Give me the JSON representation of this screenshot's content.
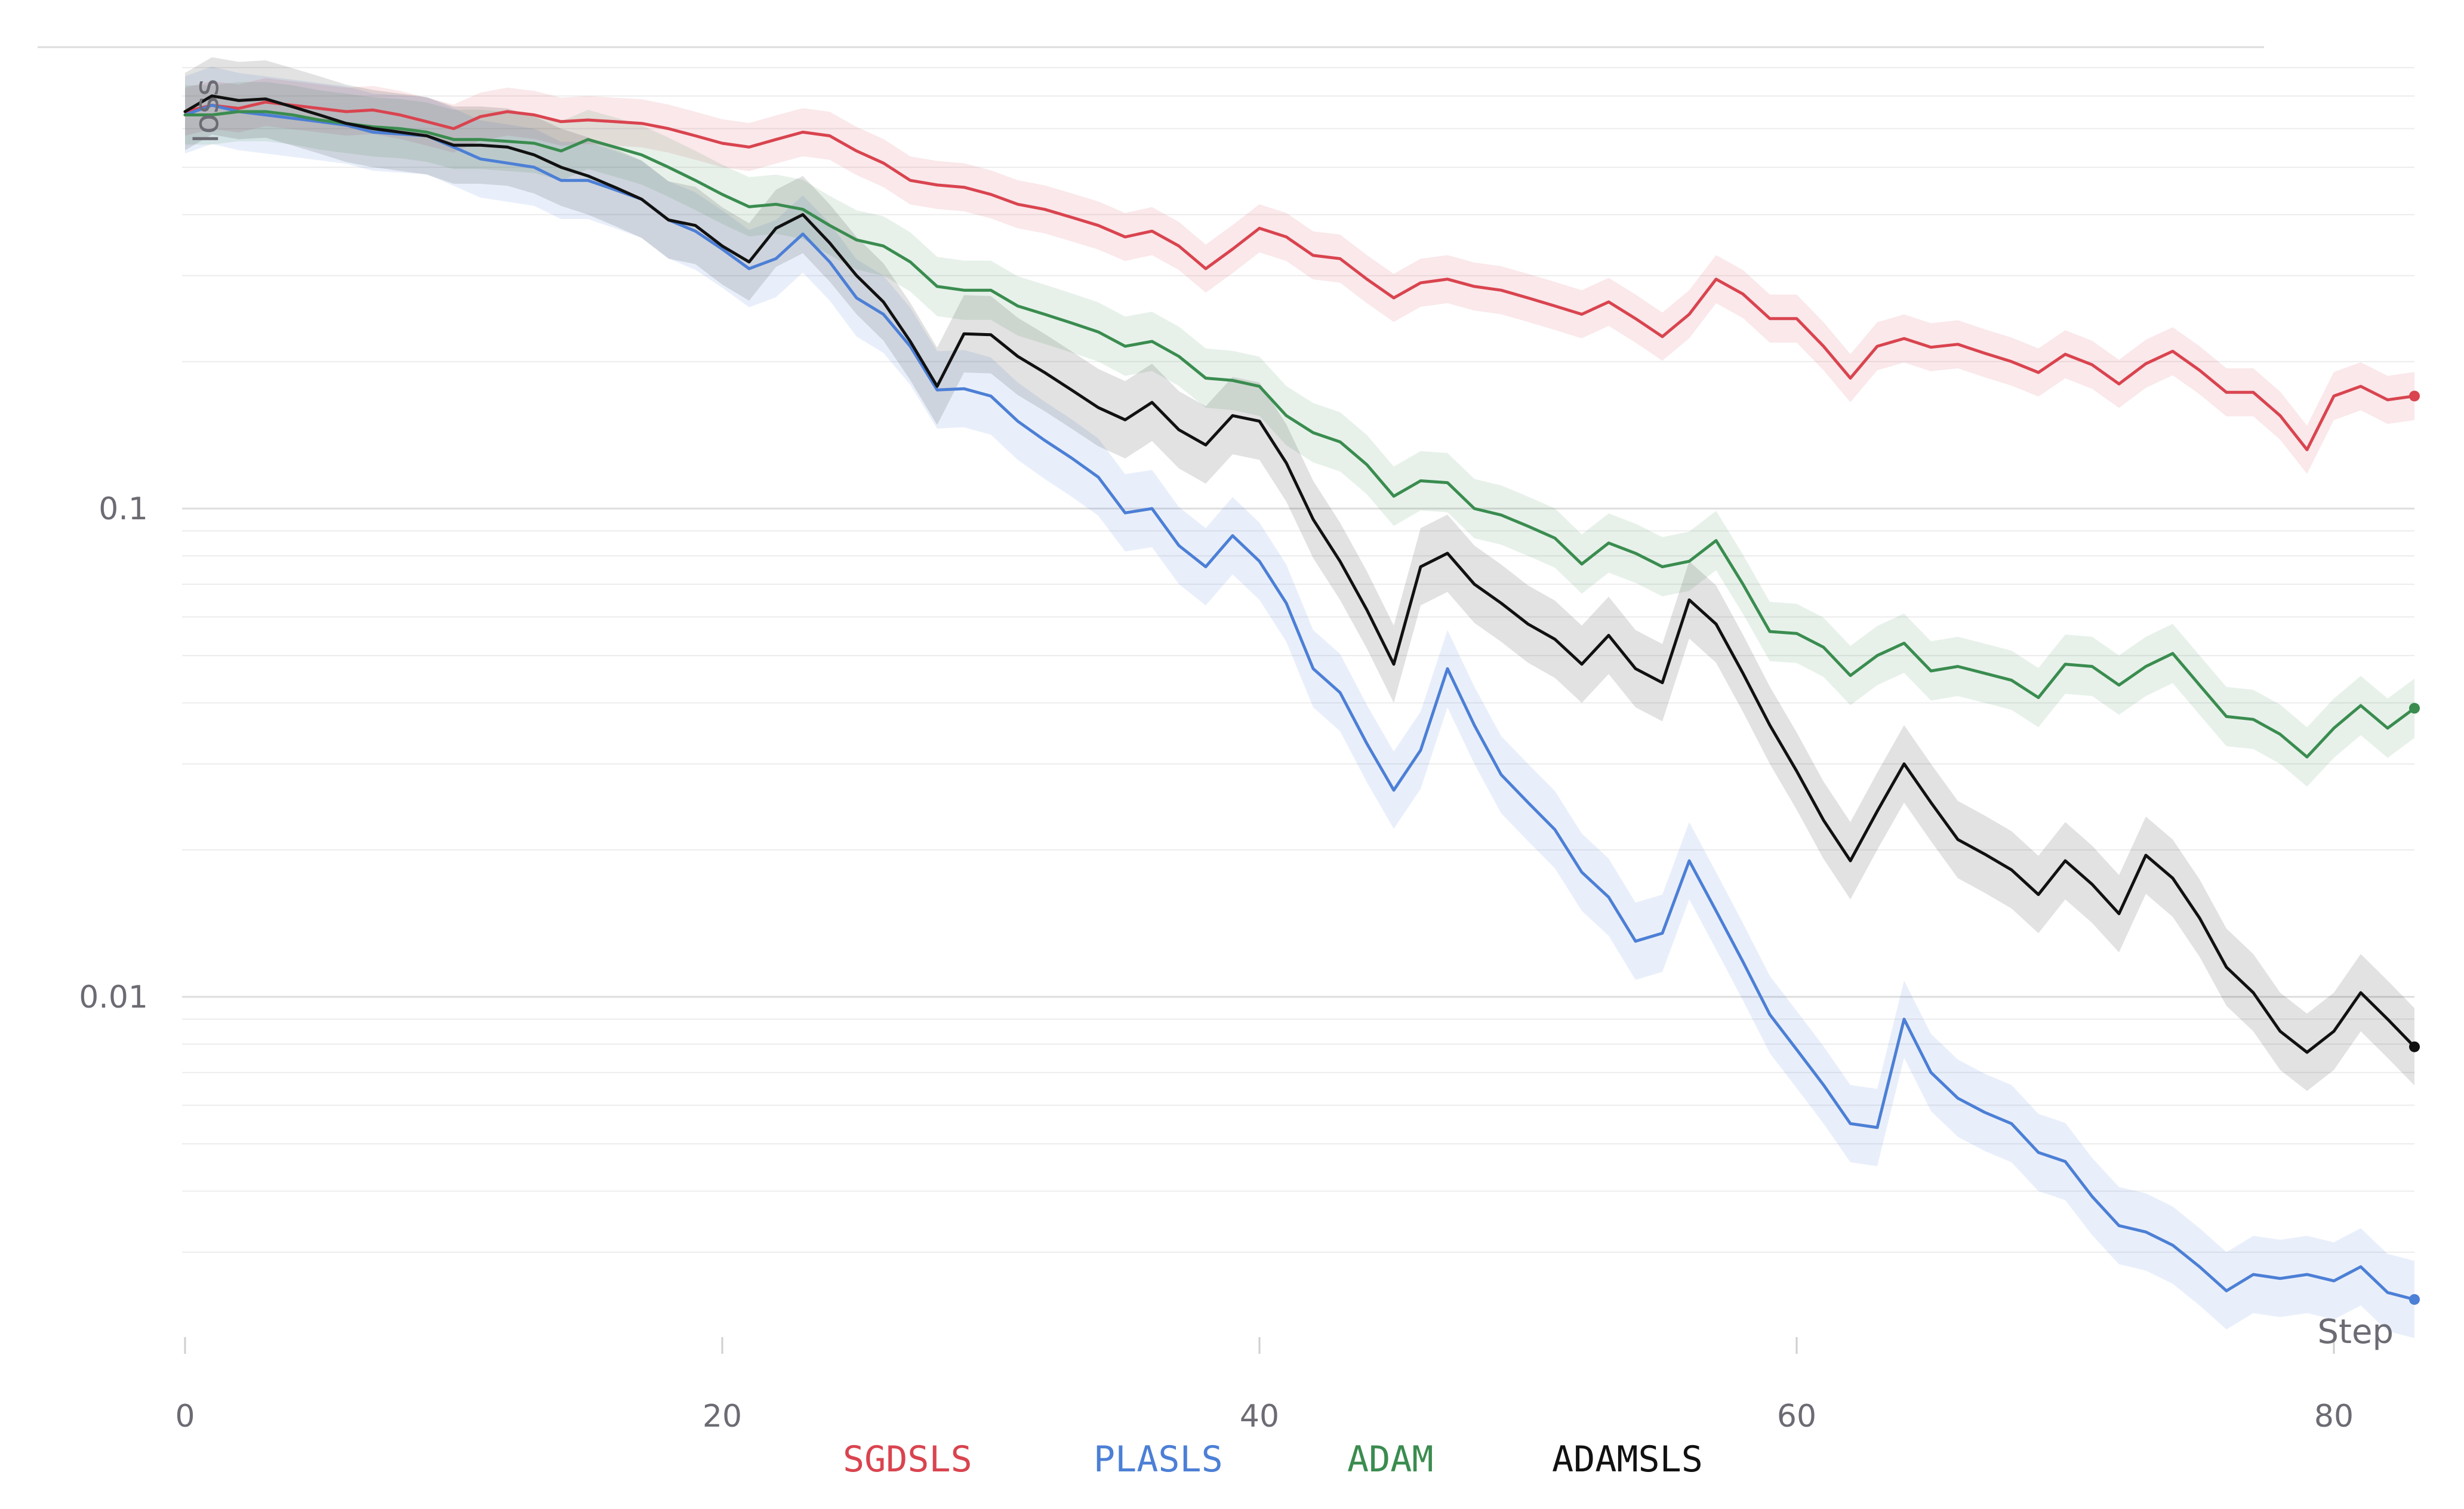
{
  "chart_data": {
    "type": "line",
    "xlabel": "Step",
    "ylabel": "loss",
    "y_scale": "log",
    "xlim": [
      0,
      83
    ],
    "ylim": [
      0.0025,
      0.85
    ],
    "x_ticks": [
      0,
      20,
      40,
      60,
      80
    ],
    "x_tick_labels": [
      "0",
      "20",
      "40",
      "60",
      "80"
    ],
    "y_ticks": [
      0.1,
      0.01
    ],
    "y_tick_labels": [
      "0.1",
      "0.01"
    ],
    "grid": true,
    "legend_position": "bottom",
    "series": [
      {
        "name": "SGDSLS",
        "color": "#d9444f",
        "band_ratio": 1.12,
        "x": [
          0,
          1,
          2,
          3,
          4,
          5,
          6,
          7,
          8,
          9,
          10,
          11,
          12,
          13,
          14,
          15,
          16,
          17,
          18,
          19,
          20,
          21,
          22,
          23,
          24,
          25,
          26,
          27,
          28,
          29,
          30,
          31,
          32,
          33,
          34,
          35,
          36,
          37,
          38,
          39,
          40,
          41,
          42,
          43,
          44,
          45,
          46,
          47,
          48,
          49,
          50,
          51,
          52,
          53,
          54,
          55,
          56,
          57,
          58,
          59,
          60,
          61,
          62,
          63,
          64,
          65,
          66,
          67,
          68,
          69,
          70,
          71,
          72,
          73,
          74,
          75,
          76,
          77,
          78,
          79,
          80,
          81,
          82,
          83
        ],
        "y": [
          0.65,
          0.67,
          0.66,
          0.68,
          0.67,
          0.66,
          0.65,
          0.655,
          0.64,
          0.62,
          0.6,
          0.635,
          0.65,
          0.64,
          0.62,
          0.625,
          0.62,
          0.615,
          0.6,
          0.58,
          0.56,
          0.55,
          0.57,
          0.59,
          0.58,
          0.54,
          0.51,
          0.47,
          0.46,
          0.455,
          0.44,
          0.42,
          0.41,
          0.395,
          0.38,
          0.36,
          0.37,
          0.345,
          0.31,
          0.34,
          0.375,
          0.36,
          0.33,
          0.325,
          0.295,
          0.27,
          0.29,
          0.295,
          0.285,
          0.28,
          0.27,
          0.26,
          0.25,
          0.265,
          0.245,
          0.225,
          0.25,
          0.295,
          0.275,
          0.245,
          0.245,
          0.215,
          0.185,
          0.215,
          0.223,
          0.214,
          0.217,
          0.208,
          0.2,
          0.19,
          0.207,
          0.197,
          0.18,
          0.198,
          0.21,
          0.192,
          0.173,
          0.173,
          0.155,
          0.132,
          0.17,
          0.178,
          0.167,
          0.17
        ]
      },
      {
        "name": "PLASLS",
        "color": "#4c7fd6",
        "band_ratio": 1.2,
        "x": [
          0,
          1,
          2,
          3,
          4,
          5,
          6,
          7,
          8,
          9,
          10,
          11,
          12,
          13,
          14,
          15,
          16,
          17,
          18,
          19,
          20,
          21,
          22,
          23,
          24,
          25,
          26,
          27,
          28,
          29,
          30,
          31,
          32,
          33,
          34,
          35,
          36,
          37,
          38,
          39,
          40,
          41,
          42,
          43,
          44,
          45,
          46,
          47,
          48,
          49,
          50,
          51,
          52,
          53,
          54,
          55,
          56,
          57,
          58,
          59,
          60,
          61,
          62,
          63,
          64,
          65,
          66,
          67,
          68,
          69,
          70,
          71,
          72,
          73,
          74,
          75,
          76,
          77,
          78,
          79,
          80,
          81,
          82,
          83
        ],
        "y": [
          0.64,
          0.67,
          0.65,
          0.64,
          0.63,
          0.62,
          0.61,
          0.59,
          0.585,
          0.58,
          0.55,
          0.52,
          0.51,
          0.5,
          0.47,
          0.47,
          0.45,
          0.43,
          0.39,
          0.37,
          0.34,
          0.31,
          0.325,
          0.365,
          0.32,
          0.27,
          0.25,
          0.215,
          0.175,
          0.176,
          0.17,
          0.151,
          0.138,
          0.127,
          0.116,
          0.098,
          0.1,
          0.084,
          0.076,
          0.088,
          0.078,
          0.064,
          0.047,
          0.042,
          0.033,
          0.0265,
          0.032,
          0.047,
          0.036,
          0.0285,
          0.025,
          0.022,
          0.018,
          0.016,
          0.013,
          0.0135,
          0.019,
          0.015,
          0.0118,
          0.0092,
          0.0078,
          0.0066,
          0.0055,
          0.0054,
          0.009,
          0.007,
          0.0062,
          0.0058,
          0.0055,
          0.0048,
          0.0046,
          0.0039,
          0.0034,
          0.0033,
          0.0031,
          0.0028,
          0.0025,
          0.0027,
          0.00265,
          0.0027,
          0.00262,
          0.0028,
          0.00248,
          0.0024
        ]
      },
      {
        "name": "ADAM",
        "color": "#3a8c4f",
        "band_ratio": 1.15,
        "x": [
          0,
          1,
          2,
          3,
          4,
          5,
          6,
          7,
          8,
          9,
          10,
          11,
          12,
          13,
          14,
          15,
          16,
          17,
          18,
          19,
          20,
          21,
          22,
          23,
          24,
          25,
          26,
          27,
          28,
          29,
          30,
          31,
          32,
          33,
          34,
          35,
          36,
          37,
          38,
          39,
          40,
          41,
          42,
          43,
          44,
          45,
          46,
          47,
          48,
          49,
          50,
          51,
          52,
          53,
          54,
          55,
          56,
          57,
          58,
          59,
          60,
          61,
          62,
          63,
          64,
          65,
          66,
          67,
          68,
          69,
          70,
          71,
          72,
          73,
          74,
          75,
          76,
          77,
          78,
          79,
          80,
          81,
          82,
          83
        ],
        "y": [
          0.64,
          0.64,
          0.65,
          0.65,
          0.64,
          0.625,
          0.615,
          0.605,
          0.6,
          0.59,
          0.57,
          0.57,
          0.565,
          0.56,
          0.54,
          0.57,
          0.55,
          0.53,
          0.5,
          0.47,
          0.44,
          0.415,
          0.42,
          0.41,
          0.38,
          0.355,
          0.345,
          0.32,
          0.285,
          0.28,
          0.28,
          0.26,
          0.25,
          0.24,
          0.23,
          0.215,
          0.22,
          0.205,
          0.185,
          0.183,
          0.178,
          0.155,
          0.143,
          0.137,
          0.123,
          0.106,
          0.114,
          0.113,
          0.1,
          0.097,
          0.092,
          0.087,
          0.077,
          0.085,
          0.081,
          0.076,
          0.078,
          0.086,
          0.07,
          0.056,
          0.0555,
          0.052,
          0.0455,
          0.05,
          0.053,
          0.0465,
          0.0475,
          0.046,
          0.0445,
          0.041,
          0.048,
          0.0475,
          0.0435,
          0.0475,
          0.0505,
          0.0435,
          0.0375,
          0.037,
          0.0345,
          0.031,
          0.0355,
          0.0395,
          0.0355,
          0.039
        ]
      },
      {
        "name": "ADAMSLS",
        "color": "#111111",
        "band_ratio": 1.2,
        "x": [
          0,
          1,
          2,
          3,
          4,
          5,
          6,
          7,
          8,
          9,
          10,
          11,
          12,
          13,
          14,
          15,
          16,
          17,
          18,
          19,
          20,
          21,
          22,
          23,
          24,
          25,
          26,
          27,
          28,
          29,
          30,
          31,
          32,
          33,
          34,
          35,
          36,
          37,
          38,
          39,
          40,
          41,
          42,
          43,
          44,
          45,
          46,
          47,
          48,
          49,
          50,
          51,
          52,
          53,
          54,
          55,
          56,
          57,
          58,
          59,
          60,
          61,
          62,
          63,
          64,
          65,
          66,
          67,
          68,
          69,
          70,
          71,
          72,
          73,
          74,
          75,
          76,
          77,
          78,
          79,
          80,
          81,
          82,
          83
        ],
        "y": [
          0.65,
          0.7,
          0.685,
          0.69,
          0.665,
          0.64,
          0.615,
          0.6,
          0.59,
          0.58,
          0.555,
          0.555,
          0.55,
          0.53,
          0.5,
          0.48,
          0.455,
          0.43,
          0.39,
          0.38,
          0.345,
          0.32,
          0.375,
          0.4,
          0.35,
          0.3,
          0.265,
          0.22,
          0.178,
          0.228,
          0.227,
          0.205,
          0.19,
          0.175,
          0.161,
          0.152,
          0.165,
          0.145,
          0.135,
          0.155,
          0.151,
          0.124,
          0.095,
          0.078,
          0.062,
          0.048,
          0.076,
          0.081,
          0.07,
          0.064,
          0.058,
          0.054,
          0.048,
          0.055,
          0.047,
          0.044,
          0.065,
          0.058,
          0.046,
          0.036,
          0.029,
          0.023,
          0.019,
          0.024,
          0.03,
          0.025,
          0.021,
          0.0196,
          0.0182,
          0.0162,
          0.019,
          0.017,
          0.0148,
          0.0195,
          0.0175,
          0.0145,
          0.0115,
          0.0102,
          0.0085,
          0.0077,
          0.0085,
          0.0102,
          0.009,
          0.0079
        ]
      }
    ]
  }
}
